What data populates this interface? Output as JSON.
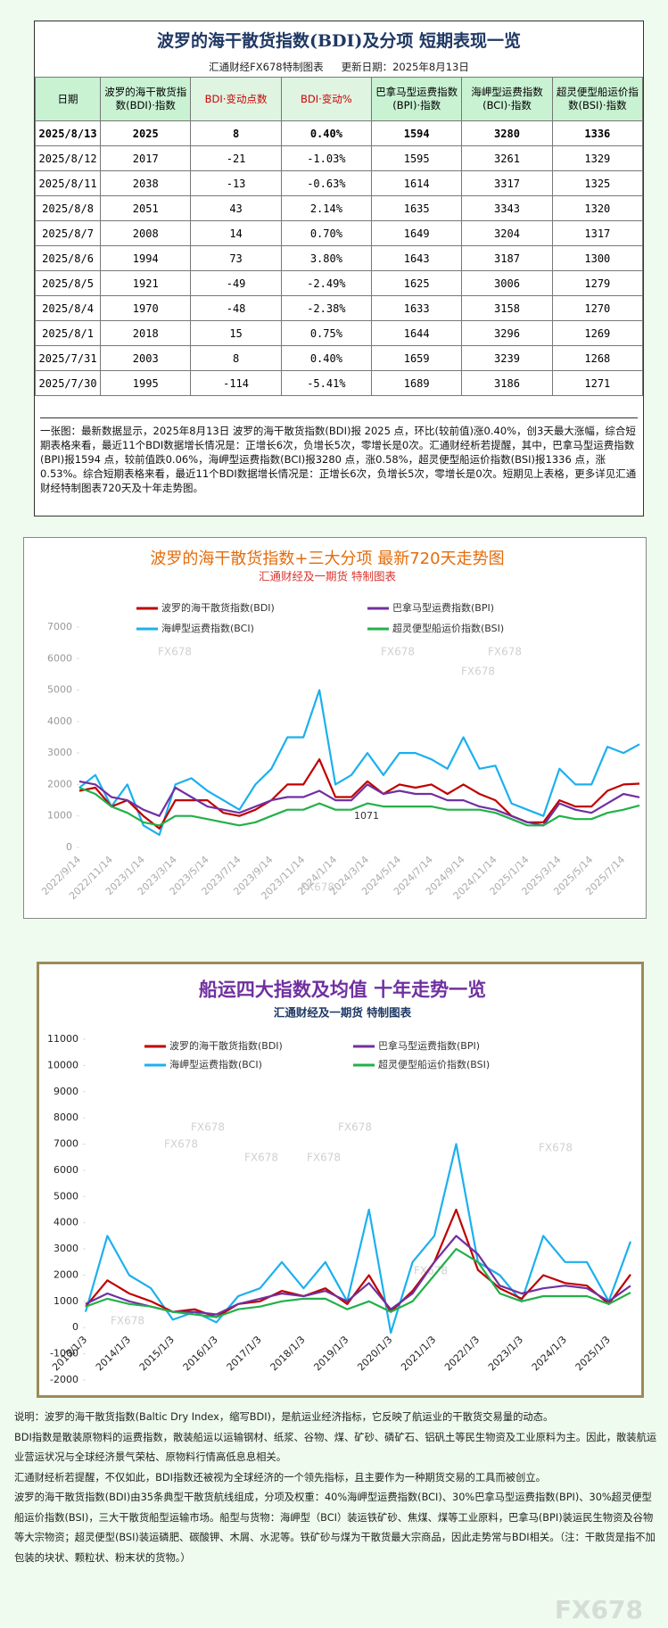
{
  "header": {
    "title": "波罗的海干散货指数(BDI)及分项  短期表现一览",
    "maker": "汇通财经FX678特制图表",
    "updated": "更新日期：2025年8月13日"
  },
  "table": {
    "columns": [
      "日期",
      "波罗的海干散货指数(BDI)·指数",
      "BDI·变动点数",
      "BDI·变动%",
      "巴拿马型运费指数(BPI)·指数",
      "海岬型运费指数(BCI)·指数",
      "超灵便型船运价指数(BSI)·指数"
    ],
    "rows": [
      [
        "2025/8/13",
        "2025",
        "8",
        "0.40%",
        "1594",
        "3280",
        "1336"
      ],
      [
        "2025/8/12",
        "2017",
        "-21",
        "-1.03%",
        "1595",
        "3261",
        "1329"
      ],
      [
        "2025/8/11",
        "2038",
        "-13",
        "-0.63%",
        "1614",
        "3317",
        "1325"
      ],
      [
        "2025/8/8",
        "2051",
        "43",
        "2.14%",
        "1635",
        "3343",
        "1320"
      ],
      [
        "2025/8/7",
        "2008",
        "14",
        "0.70%",
        "1649",
        "3204",
        "1317"
      ],
      [
        "2025/8/6",
        "1994",
        "73",
        "3.80%",
        "1643",
        "3187",
        "1300"
      ],
      [
        "2025/8/5",
        "1921",
        "-49",
        "-2.49%",
        "1625",
        "3006",
        "1279"
      ],
      [
        "2025/8/4",
        "1970",
        "-48",
        "-2.38%",
        "1633",
        "3158",
        "1270"
      ],
      [
        "2025/8/1",
        "2018",
        "15",
        "0.75%",
        "1644",
        "3296",
        "1269"
      ],
      [
        "2025/7/31",
        "2003",
        "8",
        "0.40%",
        "1659",
        "3239",
        "1268"
      ],
      [
        "2025/7/30",
        "1995",
        "-114",
        "-5.41%",
        "1689",
        "3186",
        "1271"
      ]
    ]
  },
  "summary": "一张图：最新数据显示，2025年8月13日 波罗的海干散货指数(BDI)报 2025 点，环比(较前值)涨0.40%，创3天最大涨幅，综合短期表格来看，最近11个BDI数据增长情况是：正增长6次，负增长5次，零增长是0次。汇通财经析若提醒，其中，巴拿马型运费指数(BPI)报1594 点，较前值跌0.06%，海岬型运费指数(BCI)报3280 点，涨0.58%，超灵便型船运价指数(BSI)报1336 点，涨0.53%。综合短期表格来看，最近11个BDI数据增长情况是：正增长6次，负增长5次，零增长是0次。短期见上表格，更多详见汇通财经特制图表720天及十年走势图。",
  "chart_data": [
    {
      "type": "line",
      "title": "波罗的海干散货指数+三大分项  最新720天走势图",
      "subtitle": "汇通财经及一期货 特制图表",
      "watermark": "FX678",
      "annotation": "1071",
      "grid": false,
      "categories": [
        "2022/9/14",
        null,
        "2022/11/14",
        null,
        "2023/1/14",
        null,
        "2023/3/14",
        null,
        "2023/5/14",
        null,
        "2023/7/14",
        null,
        "2023/9/14",
        null,
        "2023/11/14",
        null,
        "2024/1/14",
        null,
        "2024/3/14",
        null,
        "2024/5/14",
        null,
        "2024/7/14",
        null,
        "2024/9/14",
        null,
        "2024/11/14",
        null,
        "2025/1/14",
        null,
        "2025/3/14",
        null,
        "2025/5/14",
        null,
        "2025/7/14",
        null
      ],
      "ylim": [
        0,
        7000
      ],
      "yticks": [
        0,
        1000,
        2000,
        3000,
        4000,
        5000,
        6000,
        7000
      ],
      "series": [
        {
          "name": "波罗的海干散货指数(BDI)",
          "color": "#c00000",
          "values": [
            1800,
            1900,
            1300,
            1500,
            1000,
            600,
            1500,
            1500,
            1500,
            1100,
            1000,
            1200,
            1500,
            2000,
            2000,
            2800,
            1600,
            1600,
            2100,
            1700,
            2000,
            1900,
            2000,
            1700,
            2000,
            1700,
            1500,
            1000,
            800,
            800,
            1500,
            1300,
            1300,
            1800,
            2000,
            2025
          ]
        },
        {
          "name": "巴拿马型运费指数(BPI)",
          "color": "#7030a0",
          "values": [
            2100,
            2000,
            1600,
            1500,
            1200,
            1000,
            1900,
            1600,
            1300,
            1200,
            1100,
            1300,
            1500,
            1600,
            1600,
            1800,
            1500,
            1500,
            2000,
            1700,
            1800,
            1700,
            1700,
            1500,
            1500,
            1300,
            1200,
            1000,
            800,
            700,
            1400,
            1200,
            1100,
            1400,
            1700,
            1594
          ]
        },
        {
          "name": "海岬型运费指数(BCI)",
          "color": "#1cb0ee",
          "values": [
            1900,
            2300,
            1300,
            2000,
            700,
            400,
            2000,
            2200,
            1800,
            1500,
            1200,
            2000,
            2500,
            3500,
            3500,
            5000,
            2000,
            2300,
            3000,
            2300,
            3000,
            3000,
            2800,
            2500,
            3500,
            2500,
            2600,
            1400,
            1200,
            1000,
            2500,
            2000,
            2000,
            3200,
            3000,
            3280
          ]
        },
        {
          "name": "超灵便型船运价指数(BSI)",
          "color": "#22b04a",
          "values": [
            1900,
            1700,
            1300,
            1100,
            800,
            700,
            1000,
            1000,
            900,
            800,
            700,
            800,
            1000,
            1200,
            1200,
            1400,
            1200,
            1200,
            1400,
            1300,
            1300,
            1300,
            1300,
            1200,
            1200,
            1200,
            1100,
            900,
            700,
            700,
            1000,
            900,
            900,
            1100,
            1200,
            1336
          ]
        }
      ]
    },
    {
      "type": "line",
      "title": "船运四大指数及均值 十年走势一览",
      "subtitle": "汇通财经及一期货 特制图表",
      "watermark": "FX678",
      "grid": false,
      "categories": [
        "2013/1/3",
        null,
        "2014/1/3",
        null,
        "2015/1/3",
        null,
        "2016/1/3",
        null,
        "2017/1/3",
        null,
        "2018/1/3",
        null,
        "2019/1/3",
        null,
        "2020/1/3",
        null,
        "2021/1/3",
        null,
        "2022/1/3",
        null,
        "2023/1/3",
        null,
        "2024/1/3",
        null,
        "2025/1/3",
        null
      ],
      "ylim": [
        -2000,
        11000
      ],
      "yticks": [
        -2000,
        -1000,
        0,
        1000,
        2000,
        3000,
        4000,
        5000,
        6000,
        7000,
        8000,
        9000,
        10000,
        11000
      ],
      "series": [
        {
          "name": "波罗的海干散货指数(BDI)",
          "color": "#c00000",
          "values": [
            800,
            1800,
            1300,
            1000,
            600,
            700,
            400,
            900,
            1000,
            1400,
            1200,
            1500,
            900,
            2000,
            600,
            1400,
            2500,
            4500,
            2200,
            1500,
            1100,
            2000,
            1700,
            1600,
            900,
            2025
          ]
        },
        {
          "name": "巴拿马型运费指数(BPI)",
          "color": "#7030a0",
          "values": [
            900,
            1300,
            1000,
            800,
            600,
            600,
            500,
            900,
            1100,
            1300,
            1200,
            1400,
            1000,
            1700,
            700,
            1300,
            2500,
            3500,
            2800,
            1600,
            1300,
            1500,
            1600,
            1500,
            1000,
            1594
          ]
        },
        {
          "name": "海岬型运费指数(BCI)",
          "color": "#1cb0ee",
          "values": [
            600,
            3500,
            2000,
            1500,
            300,
            600,
            200,
            1200,
            1500,
            2500,
            1500,
            2500,
            1000,
            4500,
            -200,
            2500,
            3500,
            7000,
            2500,
            2000,
            1000,
            3500,
            2500,
            2500,
            1000,
            3280
          ]
        },
        {
          "name": "超灵便型船运价指数(BSI)",
          "color": "#22b04a",
          "values": [
            800,
            1100,
            900,
            800,
            600,
            500,
            400,
            700,
            800,
            1000,
            1100,
            1100,
            700,
            1000,
            600,
            1000,
            2000,
            3000,
            2500,
            1300,
            1000,
            1200,
            1200,
            1200,
            900,
            1336
          ]
        }
      ]
    }
  ],
  "notes": [
    "说明：波罗的海干散货指数(Baltic Dry Index，缩写BDI)，是航运业经济指标，它反映了航运业的干散货交易量的动态。",
    "BDI指数是散装原物料的运费指数，散装船运以运输钢材、纸浆、谷物、煤、矿砂、磷矿石、铝矾土等民生物资及工业原料为主。因此，散装航运业营运状况与全球经济景气荣枯、原物料行情高低息息相关。",
    "汇通财经析若提醒，不仅如此，BDI指数还被视为全球经济的一个领先指标，且主要作为一种期货交易的工具而被创立。",
    "波罗的海干散货指数(BDI)由35条典型干散货航线组成，分项及权重：40%海岬型运费指数(BCI)、30%巴拿马型运费指数(BPI)、30%超灵便型船运价指数(BSI)，三大干散货船型运输市场。船型与货物：海岬型（BCI）装运铁矿砂、焦煤、煤等工业原料，巴拿马(BPI)装运民生物资及谷物等大宗物资；超灵便型(BSI)装运磷肥、碳酸钾、木屑、水泥等。铁矿砂与煤为干散货最大宗商品，因此走势常与BDI相关。（注：干散货是指不加包装的块状、颗粒状、粉末状的货物。）"
  ],
  "watermark": "FX678"
}
